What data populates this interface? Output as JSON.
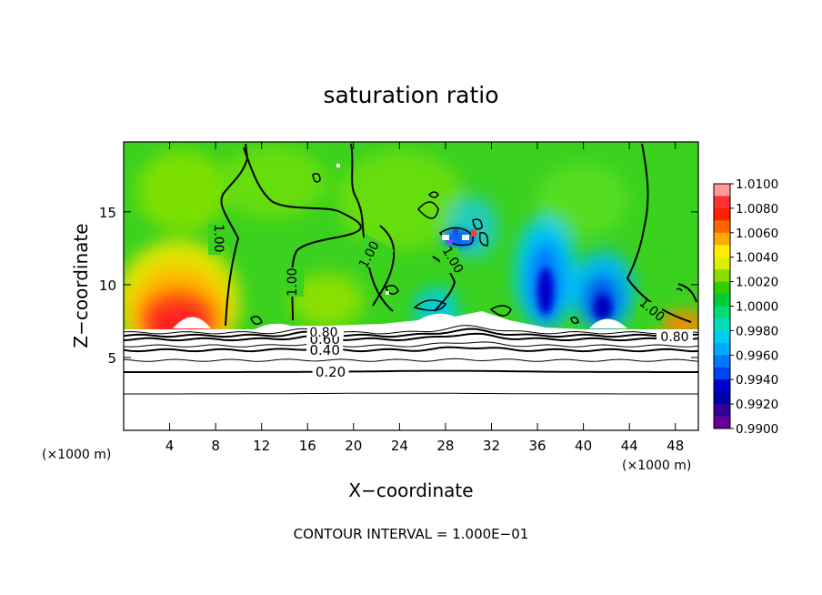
{
  "chart_data": {
    "type": "heatmap",
    "title": "saturation ratio",
    "xlabel": "X−coordinate",
    "ylabel": "Z−coordinate",
    "x_unit_left": "(×1000 m)",
    "x_unit_right": "(×1000 m)",
    "footer": "CONTOUR INTERVAL = 1.000E−01",
    "xlim": [
      0,
      50
    ],
    "ylim": [
      0,
      19.8
    ],
    "x_ticks": [
      4,
      8,
      12,
      16,
      20,
      24,
      28,
      32,
      36,
      40,
      44,
      48
    ],
    "y_ticks": [
      5,
      10,
      15
    ],
    "x_tick_labels": [
      "4",
      "8",
      "12",
      "16",
      "20",
      "24",
      "28",
      "32",
      "36",
      "40",
      "44",
      "48"
    ],
    "y_tick_labels": [
      "5",
      "10",
      "15"
    ],
    "colorbar": {
      "labels": [
        "1.0100",
        "1.0080",
        "1.0060",
        "1.0040",
        "1.0020",
        "1.0000",
        "0.9980",
        "0.9960",
        "0.9940",
        "0.9920",
        "0.9900"
      ],
      "colors": [
        "#ff9999",
        "#ff3030",
        "#ff2000",
        "#ff6600",
        "#ffaa00",
        "#ffee00",
        "#ddee00",
        "#88dd00",
        "#33cc00",
        "#00cc33",
        "#00dd77",
        "#00ddbb",
        "#00ccee",
        "#00aaff",
        "#0077ff",
        "#0044ee",
        "#0000cc",
        "#0000aa",
        "#330099",
        "#660099"
      ]
    },
    "contours": [
      {
        "level": 0.2,
        "label": "0.20",
        "z": 4.0
      },
      {
        "level": 0.4,
        "label": "0.40",
        "z": 5.5
      },
      {
        "level": 0.6,
        "label": "0.60",
        "z": 6.25
      },
      {
        "level": 0.8,
        "label": "0.80",
        "z": 6.5
      }
    ],
    "contour_1_labels": [
      "1.00",
      "1.00",
      "1.00",
      "1.00",
      "1.00"
    ],
    "contour_other_labels": [
      "0.80",
      "0.80"
    ],
    "hotspots_supersaturated": [
      {
        "x": 5.5,
        "z_top": 10.5,
        "peak": 1.01
      },
      {
        "x": 48,
        "z_top": 8,
        "peak": 1.006
      }
    ],
    "coldspots_subsaturated": [
      {
        "x": 29,
        "z": 13,
        "peak": 0.992
      },
      {
        "x": 36,
        "z": 11,
        "peak": 0.992
      },
      {
        "x": 42,
        "z": 9.5,
        "peak": 0.992
      }
    ]
  }
}
